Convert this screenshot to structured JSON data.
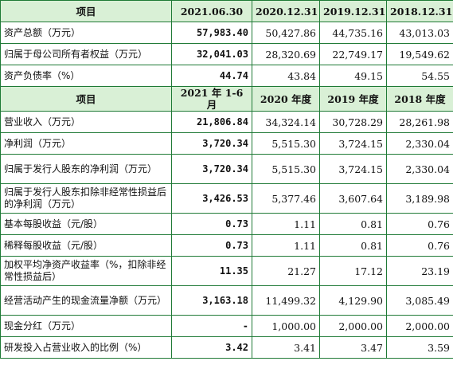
{
  "header1": [
    "项目",
    "2021.06.30",
    "2020.12.31",
    "2019.12.31",
    "2018.12.31"
  ],
  "rows1": [
    {
      "label": "资产总额（万元）",
      "values": [
        "57,983.40",
        "50,427.86",
        "44,735.16",
        "43,013.03"
      ]
    },
    {
      "label": "归属于母公司所有者权益（万元）",
      "values": [
        "32,041.03",
        "28,320.69",
        "22,749.17",
        "19,549.62"
      ]
    },
    {
      "label": "资产负债率（%）",
      "values": [
        "44.74",
        "43.84",
        "49.15",
        "54.55"
      ]
    }
  ],
  "header2": [
    "项目",
    "2021 年 1-6 月",
    "2020 年度",
    "2019 年度",
    "2018 年度"
  ],
  "rows2": [
    {
      "label": "营业收入（万元）",
      "values": [
        "21,806.84",
        "34,324.14",
        "30,728.29",
        "28,261.98"
      ]
    },
    {
      "label": "净利润（万元）",
      "values": [
        "3,720.34",
        "5,515.30",
        "3,724.15",
        "2,330.04"
      ]
    },
    {
      "label": "归属于发行人股东的净利润（万元）",
      "values": [
        "3,720.34",
        "5,515.30",
        "3,724.15",
        "2,330.04"
      ]
    },
    {
      "label": "归属于发行人股东扣除非经常性损益后的净利润（万元）",
      "values": [
        "3,426.53",
        "5,377.46",
        "3,607.64",
        "3,189.98"
      ]
    },
    {
      "label": "基本每股收益（元/股）",
      "values": [
        "0.73",
        "1.11",
        "0.81",
        "0.76"
      ]
    },
    {
      "label": "稀释每股收益（元/股）",
      "values": [
        "0.73",
        "1.11",
        "0.81",
        "0.76"
      ]
    },
    {
      "label": "加权平均净资产收益率（%，扣除非经常性损益后）",
      "values": [
        "11.35",
        "21.27",
        "17.12",
        "23.19"
      ]
    },
    {
      "label": "经营活动产生的现金流量净额（万元）",
      "values": [
        "3,163.18",
        "11,499.32",
        "4,129.90",
        "3,085.49"
      ]
    },
    {
      "label": "现金分红（万元）",
      "values": [
        "-",
        "1,000.00",
        "2,000.00",
        "2,000.00"
      ]
    },
    {
      "label": "研发投入占营业收入的比例（%）",
      "values": [
        "3.42",
        "3.41",
        "3.47",
        "3.59"
      ]
    }
  ]
}
